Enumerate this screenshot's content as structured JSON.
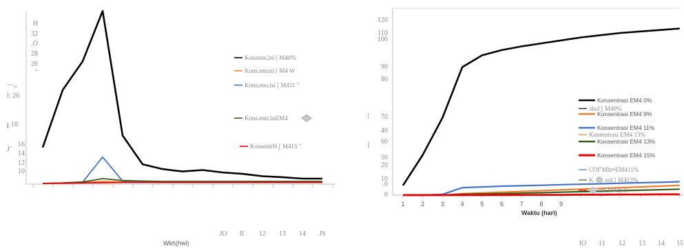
{
  "colors": {
    "black": "#000000",
    "orange": "#ed7d31",
    "blue": "#4472c4",
    "darkgreen": "#3a5a1a",
    "red": "#e00000",
    "gray": "#a5a5a5",
    "axis": "#bfbfbf"
  },
  "chart_data": [
    {
      "type": "line",
      "title": "",
      "xlabel": "Wkt\\(hwl)",
      "ylabel": "",
      "ylim": [
        0,
        36
      ],
      "grid": false,
      "legend": "right",
      "y_tick_labels": [
        "H",
        "32",
        ".O",
        "28",
        "26",
        "\"",
        "—,,",
        "l: 20",
        "i",
        "18",
        "J’",
        "16",
        "14",
        "12",
        "10"
      ],
      "x_tick_labels": [
        "JO",
        "II",
        "12",
        "13",
        "14",
        "JS"
      ],
      "x": [
        1,
        2,
        3,
        4,
        5,
        6,
        7,
        8,
        9,
        10,
        11,
        12,
        13,
        14,
        15
      ],
      "series": [
        {
          "name": "Konsenu,lsi [ M40%",
          "color": "#000000",
          "values": [
            7.5,
            19.5,
            25.5,
            36.0,
            10.0,
            4.0,
            3.0,
            2.5,
            2.8,
            2.3,
            2.0,
            1.5,
            1.3,
            1.0,
            1.0
          ]
        },
        {
          "name": "Kons.entusi [ M4 W",
          "color": "#ed7d31",
          "values": [
            0.0,
            0.1,
            0.2,
            0.4,
            0.3,
            0.3,
            0.3,
            0.3,
            0.3,
            0.3,
            0.3,
            0.3,
            0.3,
            0.3,
            0.3
          ]
        },
        {
          "name": "Kons,enu,lsi [ M411 ''",
          "color": "#4472c4",
          "values": [
            0.0,
            0.1,
            0.3,
            5.5,
            0.5,
            0.4,
            0.4,
            0.4,
            0.4,
            0.4,
            0.4,
            0.4,
            0.4,
            0.4,
            0.4
          ]
        },
        {
          "name": "Kons.entr,lsi£M4",
          "color": "#3a5a1a",
          "values": [
            0.0,
            0.1,
            0.3,
            1.0,
            0.6,
            0.5,
            0.4,
            0.4,
            0.4,
            0.4,
            0.4,
            0.4,
            0.4,
            0.4,
            0.4
          ]
        },
        {
          "name": "KonsentrH [ M415 ''",
          "color": "#e00000",
          "values": [
            0.0,
            0.05,
            0.1,
            0.15,
            0.2,
            0.2,
            0.2,
            0.2,
            0.2,
            0.2,
            0.2,
            0.2,
            0.2,
            0.2,
            0.2
          ]
        }
      ]
    },
    {
      "type": "line",
      "title": "",
      "xlabel": "Waktu (hari)",
      "ylabel": "",
      "ylim": [
        0,
        120
      ],
      "grid": false,
      "legend": "right",
      "y_tick_labels": [
        "120",
        "110",
        "100",
        "90",
        "80",
        "!",
        "70",
        "40",
        "60",
        "]",
        "50",
        "20",
        "10",
        ".0",
        "0"
      ],
      "x_tick_labels": [
        "1",
        "2",
        "3",
        "4",
        "5",
        "6",
        "7",
        "8",
        "9"
      ],
      "x_tick_labels_lower": [
        "IO",
        "11",
        "12",
        "13",
        "14",
        "15"
      ],
      "x": [
        1,
        2,
        3,
        4,
        5,
        6,
        7,
        8,
        9,
        10,
        11,
        12,
        13,
        14,
        15
      ],
      "series": [
        {
          "name": "Konsentrasi EM4 0%",
          "color": "#000000",
          "values": [
            6.5,
            27.0,
            52.0,
            86.0,
            94.0,
            97.5,
            100.0,
            102.0,
            104.0,
            106.0,
            107.5,
            109.0,
            110.0,
            111.0,
            112.0
          ]
        },
        {
          "name": "Konsentrasi EM4 9%",
          "color": "#ed7d31",
          "values": [
            0.0,
            0.0,
            0.0,
            1.0,
            1.5,
            2.0,
            2.5,
            3.0,
            3.5,
            4.0,
            4.5,
            5.0,
            5.5,
            6.0,
            6.5
          ]
        },
        {
          "name": "Konsentrasi EM4 11%",
          "color": "#4472c4",
          "values": [
            0.0,
            0.0,
            0.5,
            5.0,
            5.5,
            6.0,
            6.3,
            6.6,
            7.0,
            7.3,
            7.6,
            8.0,
            8.3,
            8.6,
            9.0
          ]
        },
        {
          "name": "Konsentrasi EM4 13%",
          "color": "#3a5a1a",
          "values": [
            0.0,
            0.0,
            0.0,
            0.5,
            0.8,
            1.0,
            1.3,
            1.6,
            2.0,
            2.3,
            2.6,
            3.0,
            3.3,
            3.6,
            4.0
          ]
        },
        {
          "name": "Konsentrasi EM4 15%",
          "color": "#e00000",
          "values": [
            0.0,
            0.0,
            0.0,
            0.0,
            0.0,
            0.1,
            0.1,
            0.2,
            0.2,
            0.3,
            0.3,
            0.4,
            0.4,
            0.5,
            0.5
          ]
        }
      ],
      "extra_legend": [
        {
          "text": "akul [ M40%",
          "color": "#000000"
        },
        {
          "text": "Konsentrasi EM4 13%",
          "color": "#ed7d31"
        },
        {
          "text": "COf''Mltr•EM411%",
          "color": "#4472c4"
        },
        {
          "text": "K ",
          "text2": "onl [ M413%",
          "color": "#3a5a1a"
        },
        {
          "text": "",
          "text2": "urCM41S1'",
          "color": "#e00000"
        }
      ]
    }
  ]
}
